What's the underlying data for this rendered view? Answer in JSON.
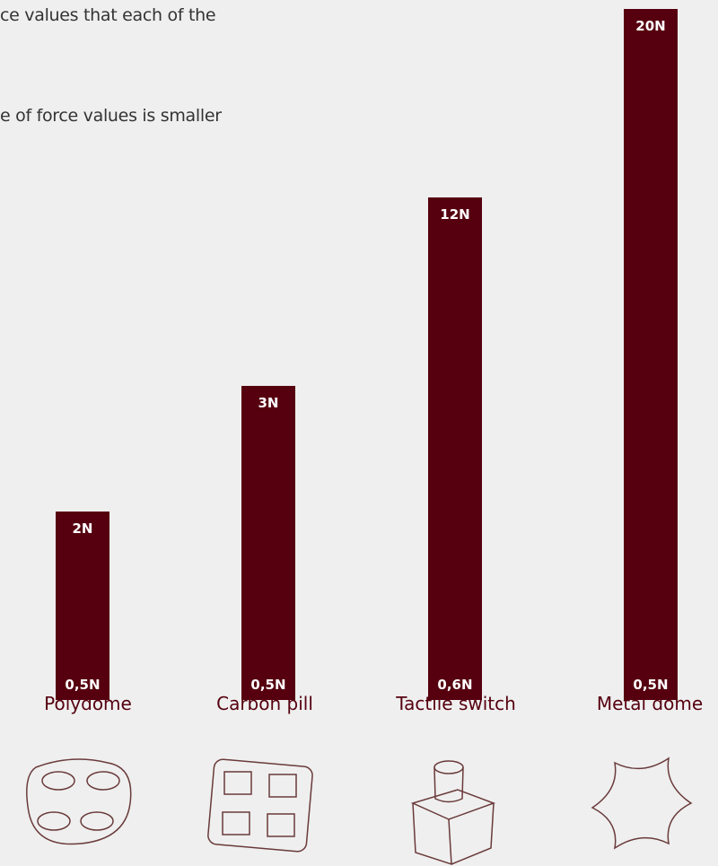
{
  "intro": {
    "lines": [
      "ce values that each of the",
      "e of force values is smaller"
    ]
  },
  "bars": [
    {
      "name": "Polydome",
      "max": "2N",
      "min": "0,5N"
    },
    {
      "name": "Carbon pill",
      "max": "3N",
      "min": "0,5N"
    },
    {
      "name": "Tactile switch",
      "max": "12N",
      "min": "0,6N"
    },
    {
      "name": "Metal dome",
      "max": "20N",
      "min": "0,5N"
    }
  ]
}
